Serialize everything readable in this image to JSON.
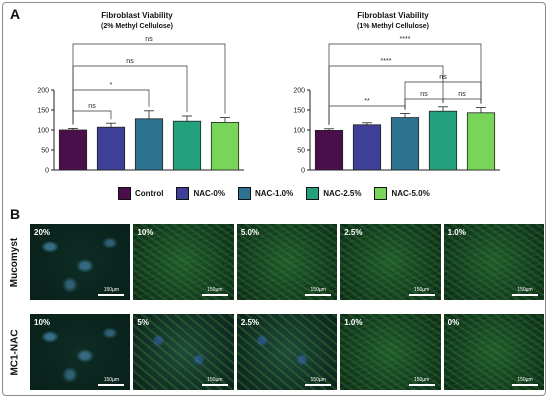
{
  "panel_a_label": "A",
  "panel_b_label": "B",
  "chart_data": [
    {
      "type": "bar",
      "title": "Fibroblast Viability",
      "subtitle": "(2% Methyl Cellulose)",
      "categories": [
        "Control",
        "NAC-0%",
        "NAC-1.0%",
        "NAC-2.5%",
        "NAC-5.0%"
      ],
      "values": [
        100,
        107,
        128,
        122,
        119
      ],
      "errors": [
        4,
        10,
        20,
        13,
        12
      ],
      "ylim": [
        0,
        200
      ],
      "yticks": [
        "0",
        "50",
        "100",
        "150",
        "200"
      ],
      "grid": false,
      "significance": [
        {
          "from": 0,
          "to": 1,
          "label": "ns"
        },
        {
          "from": 0,
          "to": 2,
          "label": "*"
        },
        {
          "from": 0,
          "to": 3,
          "label": "ns"
        },
        {
          "from": 0,
          "to": 4,
          "label": "ns"
        }
      ]
    },
    {
      "type": "bar",
      "title": "Fibroblast Viability",
      "subtitle": "(1% Methyl  Cellulose)",
      "categories": [
        "Control",
        "NAC-0%",
        "NAC-1.0%",
        "NAC-2.5%",
        "NAC-5.0%"
      ],
      "values": [
        99,
        113,
        131,
        147,
        143
      ],
      "errors": [
        4,
        5,
        10,
        11,
        13
      ],
      "ylim": [
        0,
        200
      ],
      "yticks": [
        "0",
        "50",
        "100",
        "150",
        "200"
      ],
      "grid": false,
      "significance": [
        {
          "from": 0,
          "to": 2,
          "label": "**"
        },
        {
          "from": 2,
          "to": 3,
          "label": "ns"
        },
        {
          "from": 3,
          "to": 4,
          "label": "ns"
        },
        {
          "from": 2,
          "to": 4,
          "label": "ns"
        },
        {
          "from": 0,
          "to": 3,
          "label": "****"
        },
        {
          "from": 0,
          "to": 4,
          "label": "****"
        }
      ]
    }
  ],
  "legend": [
    {
      "label": "Control",
      "color": "#4a0f4a"
    },
    {
      "label": "NAC-0%",
      "color": "#3e3f96"
    },
    {
      "label": "NAC-1.0%",
      "color": "#2b7391"
    },
    {
      "label": "NAC-2.5%",
      "color": "#23a17d"
    },
    {
      "label": "NAC-5.0%",
      "color": "#78d55a"
    }
  ],
  "micrographs": {
    "rows": [
      {
        "label": "Mucomyst",
        "panels": [
          {
            "label": "20%",
            "scale": "150µm",
            "texture": "sparse"
          },
          {
            "label": "10%",
            "scale": "150µm",
            "texture": "dense"
          },
          {
            "label": "5.0%",
            "scale": "150µm",
            "texture": "dense"
          },
          {
            "label": "2.5%",
            "scale": "150µm",
            "texture": "dense"
          },
          {
            "label": "1.0%",
            "scale": "150µm",
            "texture": "dense"
          }
        ]
      },
      {
        "label": "MC1-NAC",
        "panels": [
          {
            "label": "10%",
            "scale": "150µm",
            "texture": "sparse"
          },
          {
            "label": "5%",
            "scale": "150µm",
            "texture": "blue"
          },
          {
            "label": "2.5%",
            "scale": "150µm",
            "texture": "blue"
          },
          {
            "label": "1.0%",
            "scale": "150µm",
            "texture": "dense"
          },
          {
            "label": "0%",
            "scale": "150µm",
            "texture": "dense"
          }
        ]
      }
    ]
  }
}
